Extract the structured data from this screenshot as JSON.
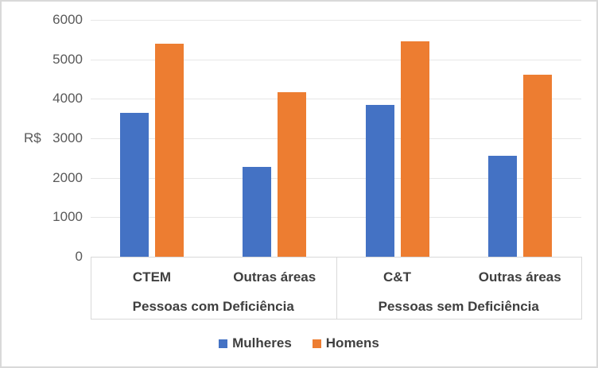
{
  "chart_data": {
    "type": "bar",
    "ylabel": "R$",
    "ylim": [
      0,
      6000
    ],
    "yticks": [
      0,
      1000,
      2000,
      3000,
      4000,
      5000,
      6000
    ],
    "grid": true,
    "legend_position": "bottom",
    "groups": [
      {
        "label": "Pessoas com Deficiência",
        "categories": [
          "CTEM",
          "Outras áreas"
        ]
      },
      {
        "label": "Pessoas sem Deficiência",
        "categories": [
          "C&T",
          "Outras áreas"
        ]
      }
    ],
    "series": [
      {
        "name": "Mulheres",
        "color": "#4472C4",
        "values": [
          3640,
          2280,
          3850,
          2550
        ]
      },
      {
        "name": "Homens",
        "color": "#ED7D31",
        "values": [
          5400,
          4170,
          5450,
          4610
        ]
      }
    ]
  }
}
